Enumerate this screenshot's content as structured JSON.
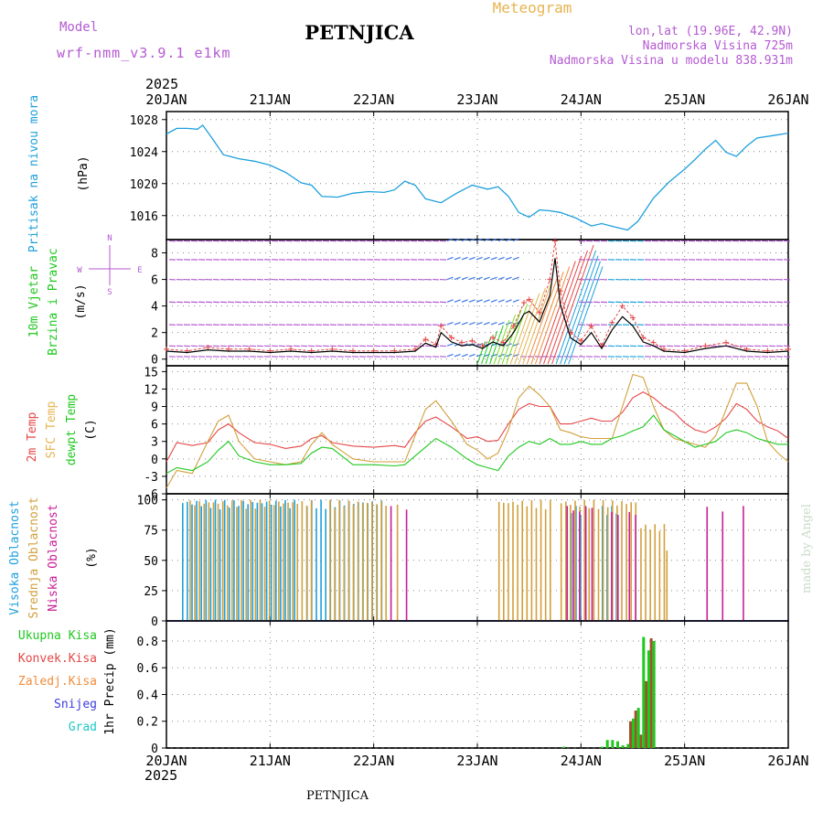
{
  "header": {
    "model_label": "Model",
    "model_name": "wrf-nmm_v3.9.1  e1km",
    "station": "PETNJICA",
    "meteogram": "Meteogram",
    "lonlat": "lon,lat (19.96E, 42.9N)",
    "altitude": "Nadmorska Visina 725m",
    "model_altitude": "Nadmorska Visina u modelu 838.931m",
    "footer_station": "PETNJICA",
    "watermark": "made by Angel",
    "year_top": "2025",
    "year_bottom": "2025"
  },
  "colors": {
    "purple": "#b45ad2",
    "orange": "#e6b450",
    "cyan": "#1ea0dc",
    "green": "#1ec81e",
    "red": "#e64646",
    "tan": "#d2a03c",
    "magenta": "#c81e96",
    "snow": "#3c3cdc",
    "grad": "#1ec8c8",
    "brown": "#a0522d",
    "precip_orange": "#f08c3c"
  },
  "days": [
    "20JAN",
    "21JAN",
    "22JAN",
    "23JAN",
    "24JAN",
    "25JAN",
    "26JAN"
  ],
  "panel_labels": {
    "pressure": {
      "line1": "Pritisak na nivou mora",
      "unit": "(hPa)"
    },
    "wind": {
      "line1": "10m Vjetar",
      "line2": "Brzina i Pravac",
      "unit": "(m/s)",
      "compass_n": "N",
      "compass_s": "S",
      "compass_w": "W",
      "compass_e": "E"
    },
    "temp": {
      "line1": "2m Temp",
      "line2": "SFC Temp",
      "line3": "dewpt Temp",
      "unit": "(C)"
    },
    "cloud": {
      "line1": "Visoka Oblacnost",
      "line2": "Srednja Oblacnost",
      "line3": "Niska Oblacnost",
      "unit": "(%)"
    },
    "precip": {
      "l1": "Ukupna Kisa",
      "l2": "Konvek.Kisa",
      "l3": "Zaledj.Kisa",
      "l4": "Snijeg",
      "l5": "Grad",
      "unit": "1hr Precip (mm)"
    }
  },
  "chart_data": [
    {
      "type": "line",
      "name": "pressure",
      "ylim": [
        1013,
        1029
      ],
      "yticks": [
        "1028",
        "1024",
        "1020",
        "1016"
      ],
      "ytick_values": [
        1028,
        1024,
        1020,
        1016
      ],
      "x": [
        0,
        0.1,
        0.2,
        0.3,
        0.35,
        0.45,
        0.55,
        0.7,
        0.85,
        1.0,
        1.15,
        1.3,
        1.4,
        1.5,
        1.65,
        1.8,
        1.95,
        2.1,
        2.2,
        2.3,
        2.4,
        2.5,
        2.65,
        2.8,
        2.95,
        3.1,
        3.2,
        3.3,
        3.4,
        3.5,
        3.6,
        3.7,
        3.8,
        3.95,
        4.1,
        4.2,
        4.35,
        4.45,
        4.55,
        4.7,
        4.85,
        5.0,
        5.1,
        5.2,
        5.3,
        5.4,
        5.5,
        5.6,
        5.7,
        5.85,
        6.0
      ],
      "y": [
        1026.2,
        1026.9,
        1026.9,
        1026.8,
        1027.3,
        1025.5,
        1023.6,
        1023.1,
        1022.8,
        1022.3,
        1021.4,
        1020.1,
        1019.8,
        1018.4,
        1018.3,
        1018.8,
        1019.0,
        1018.9,
        1019.2,
        1020.3,
        1019.8,
        1018.1,
        1017.6,
        1018.8,
        1019.8,
        1019.3,
        1019.6,
        1018.4,
        1016.4,
        1015.8,
        1016.7,
        1016.6,
        1016.4,
        1015.7,
        1014.7,
        1015.0,
        1014.5,
        1014.2,
        1015.3,
        1018.2,
        1020.2,
        1021.8,
        1023.0,
        1024.3,
        1025.4,
        1023.9,
        1023.4,
        1024.7,
        1025.7,
        1026.0,
        1026.3
      ]
    },
    {
      "type": "line",
      "name": "wind",
      "ylim": [
        -0.5,
        9
      ],
      "yticks": [
        "8",
        "6",
        "4",
        "2",
        "0"
      ],
      "ytick_values": [
        8,
        6,
        4,
        2,
        0
      ],
      "x": [
        0,
        0.2,
        0.4,
        0.6,
        0.8,
        1.0,
        1.2,
        1.4,
        1.6,
        1.8,
        2.0,
        2.2,
        2.4,
        2.5,
        2.6,
        2.65,
        2.75,
        2.85,
        2.95,
        3.05,
        3.15,
        3.25,
        3.35,
        3.45,
        3.5,
        3.6,
        3.7,
        3.75,
        3.8,
        3.9,
        4.0,
        4.1,
        4.2,
        4.3,
        4.4,
        4.5,
        4.6,
        4.7,
        4.8,
        5.0,
        5.2,
        5.4,
        5.6,
        5.8,
        6.0
      ],
      "speed": [
        0.6,
        0.5,
        0.7,
        0.6,
        0.6,
        0.5,
        0.6,
        0.5,
        0.6,
        0.5,
        0.5,
        0.5,
        0.6,
        1.2,
        0.9,
        2.0,
        1.3,
        1.0,
        1.1,
        0.8,
        1.3,
        1.0,
        2.0,
        3.4,
        3.6,
        2.8,
        4.8,
        7.6,
        4.1,
        1.6,
        1.1,
        2.0,
        0.8,
        2.2,
        3.2,
        2.5,
        1.3,
        1.0,
        0.6,
        0.5,
        0.8,
        1.0,
        0.6,
        0.5,
        0.6
      ]
    },
    {
      "type": "line",
      "name": "temperature",
      "ylim": [
        -6,
        16
      ],
      "yticks": [
        "15",
        "12",
        "9",
        "6",
        "3",
        "0",
        "-3",
        "-6"
      ],
      "ytick_values": [
        15,
        12,
        9,
        6,
        3,
        0,
        -3,
        -6
      ],
      "x": [
        0,
        0.1,
        0.25,
        0.4,
        0.5,
        0.6,
        0.7,
        0.85,
        1.0,
        1.15,
        1.3,
        1.4,
        1.5,
        1.6,
        1.8,
        2.0,
        2.2,
        2.3,
        2.4,
        2.5,
        2.6,
        2.75,
        2.9,
        3.0,
        3.1,
        3.2,
        3.3,
        3.4,
        3.5,
        3.6,
        3.7,
        3.8,
        3.9,
        4.0,
        4.1,
        4.2,
        4.3,
        4.4,
        4.5,
        4.6,
        4.7,
        4.8,
        4.9,
        5.0,
        5.1,
        5.2,
        5.3,
        5.4,
        5.5,
        5.6,
        5.7,
        5.8,
        5.9,
        6.0
      ],
      "series": [
        {
          "name": "2m Temp",
          "color_key": "red",
          "y": [
            -0.5,
            2.8,
            2.3,
            2.8,
            5.0,
            6.0,
            4.5,
            2.8,
            2.5,
            1.8,
            2.2,
            3.5,
            4.0,
            2.8,
            2.2,
            2.0,
            2.3,
            2.0,
            4.5,
            6.5,
            7.2,
            5.5,
            3.5,
            3.8,
            3.0,
            3.2,
            6.0,
            8.5,
            9.5,
            9.0,
            9.0,
            6.0,
            6.0,
            6.5,
            7.0,
            6.5,
            6.5,
            8.0,
            10.5,
            11.5,
            10.5,
            9.0,
            8.0,
            6.2,
            5.0,
            4.5,
            5.5,
            7.0,
            9.5,
            8.5,
            6.5,
            5.5,
            4.8,
            3.5
          ]
        },
        {
          "name": "SFC Temp",
          "color_key": "tan",
          "y": [
            -5.0,
            -2.0,
            -2.5,
            3.0,
            6.5,
            7.5,
            3.0,
            0.0,
            -0.5,
            -1.0,
            -0.5,
            2.5,
            4.5,
            2.5,
            0.0,
            -0.5,
            -0.5,
            -0.5,
            4.0,
            8.5,
            10.0,
            6.5,
            2.5,
            1.5,
            0.0,
            1.0,
            5.0,
            10.5,
            12.5,
            11.0,
            9.0,
            5.0,
            4.5,
            3.8,
            3.5,
            3.5,
            3.5,
            9.0,
            14.5,
            14.0,
            9.0,
            5.0,
            3.5,
            3.0,
            2.5,
            2.0,
            4.0,
            8.5,
            13.0,
            13.0,
            9.0,
            3.0,
            1.0,
            -0.5
          ]
        },
        {
          "name": "dewpt Temp",
          "color_key": "green",
          "y": [
            -2.5,
            -1.5,
            -2.0,
            -0.5,
            1.5,
            3.0,
            0.5,
            -0.5,
            -1.0,
            -1.0,
            -0.8,
            1.0,
            2.0,
            1.8,
            -1.0,
            -1.0,
            -1.2,
            -1.0,
            0.5,
            2.0,
            3.5,
            2.0,
            0.0,
            -1.0,
            -1.5,
            -2.0,
            0.5,
            2.0,
            3.0,
            2.5,
            3.5,
            2.5,
            2.5,
            3.0,
            2.5,
            2.5,
            3.5,
            4.0,
            4.8,
            5.5,
            7.5,
            5.0,
            4.0,
            3.0,
            2.0,
            2.5,
            3.0,
            4.5,
            5.0,
            4.5,
            3.5,
            3.0,
            2.5,
            2.5
          ]
        }
      ]
    },
    {
      "type": "bar",
      "name": "cloud",
      "ylim": [
        0,
        105
      ],
      "yticks": [
        "100",
        "75",
        "50",
        "25",
        "0"
      ],
      "ytick_values": [
        100,
        75,
        50,
        25,
        0
      ],
      "high_segments": [
        [
          0.15,
          1.25,
          100
        ],
        [
          1.35,
          2.1,
          100
        ],
        [
          3.9,
          4.05,
          95
        ],
        [
          4.2,
          4.35,
          95
        ]
      ],
      "mid_segments": [
        [
          0.2,
          1.4,
          100
        ],
        [
          1.55,
          2.15,
          100
        ],
        [
          2.2,
          2.25,
          100
        ],
        [
          3.18,
          3.7,
          100
        ],
        [
          3.78,
          4.55,
          100
        ],
        [
          4.55,
          4.8,
          80
        ],
        [
          4.8,
          4.85,
          60
        ]
      ],
      "low_segments": [
        [
          2.15,
          2.2,
          95
        ],
        [
          2.3,
          2.35,
          95
        ],
        [
          3.85,
          4.1,
          95
        ],
        [
          4.28,
          4.35,
          90
        ],
        [
          4.45,
          4.55,
          90
        ],
        [
          5.2,
          5.25,
          95
        ],
        [
          5.35,
          5.4,
          95
        ],
        [
          5.55,
          5.6,
          95
        ]
      ]
    },
    {
      "type": "bar",
      "name": "precipitation",
      "ylim": [
        0,
        0.95
      ],
      "yticks": [
        "0.8",
        "0.6",
        "0.4",
        "0.2",
        "0"
      ],
      "ytick_values": [
        0.8,
        0.6,
        0.4,
        0.2,
        0
      ],
      "total": [
        [
          3.83,
          0.01
        ],
        [
          4.2,
          0.01
        ],
        [
          4.25,
          0.06
        ],
        [
          4.3,
          0.06
        ],
        [
          4.35,
          0.05
        ],
        [
          4.4,
          0.02
        ],
        [
          4.45,
          0.03
        ],
        [
          4.5,
          0.22
        ],
        [
          4.55,
          0.3
        ],
        [
          4.6,
          0.83
        ],
        [
          4.65,
          0.73
        ],
        [
          4.7,
          0.8
        ]
      ],
      "convective": [
        [
          4.5,
          0.2
        ],
        [
          4.55,
          0.28
        ],
        [
          4.6,
          0.1
        ],
        [
          4.65,
          0.5
        ],
        [
          4.7,
          0.82
        ]
      ]
    }
  ]
}
